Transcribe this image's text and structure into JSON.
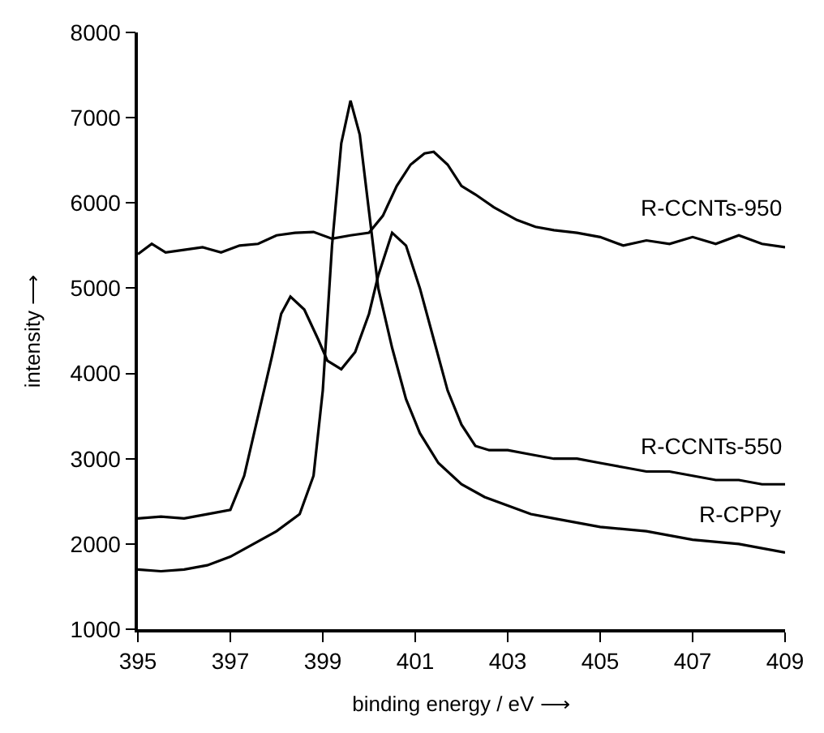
{
  "chart_data": {
    "type": "line",
    "xlabel": "binding energy / eV ⟶",
    "ylabel": "intensity ⟶",
    "xlim": [
      395,
      409
    ],
    "xticks": [
      395,
      397,
      399,
      401,
      403,
      405,
      407,
      409
    ],
    "ylim": [
      1000,
      8000
    ],
    "yticks": [
      1000,
      2000,
      3000,
      4000,
      5000,
      6000,
      7000,
      8000
    ],
    "legend": false,
    "marker": "none",
    "line_style": "solid",
    "series": [
      {
        "name": "R-CCNTs-950",
        "color": "#000000",
        "x": [
          395,
          395.3,
          395.6,
          396,
          396.4,
          396.8,
          397.2,
          397.6,
          398,
          398.4,
          398.8,
          399.2,
          399.6,
          400,
          400.3,
          400.6,
          400.9,
          401.2,
          401.4,
          401.7,
          402,
          402.3,
          402.7,
          403.2,
          403.6,
          404,
          404.5,
          405,
          405.5,
          406,
          406.5,
          407,
          407.5,
          408,
          408.5,
          409
        ],
        "values": [
          5400,
          5520,
          5420,
          5450,
          5480,
          5420,
          5500,
          5520,
          5620,
          5650,
          5660,
          5580,
          5620,
          5650,
          5850,
          6200,
          6450,
          6580,
          6600,
          6450,
          6200,
          6100,
          5950,
          5800,
          5720,
          5680,
          5650,
          5600,
          5500,
          5560,
          5520,
          5600,
          5520,
          5620,
          5520,
          5480
        ]
      },
      {
        "name": "R-CCNTs-550",
        "color": "#000000",
        "x": [
          395,
          395.5,
          396,
          396.5,
          397,
          397.3,
          397.6,
          397.9,
          398.1,
          398.3,
          398.6,
          398.9,
          399.1,
          399.4,
          399.7,
          400,
          400.2,
          400.5,
          400.8,
          401.1,
          401.4,
          401.7,
          402,
          402.3,
          402.6,
          403,
          403.5,
          404,
          404.5,
          405,
          405.5,
          406,
          406.5,
          407,
          407.5,
          408,
          408.5,
          409
        ],
        "values": [
          2300,
          2320,
          2300,
          2350,
          2400,
          2800,
          3500,
          4200,
          4700,
          4900,
          4750,
          4400,
          4150,
          4050,
          4250,
          4700,
          5150,
          5650,
          5500,
          5000,
          4400,
          3800,
          3400,
          3150,
          3100,
          3100,
          3050,
          3000,
          3000,
          2950,
          2900,
          2850,
          2850,
          2800,
          2750,
          2750,
          2700,
          2700
        ]
      },
      {
        "name": "R-CPPy",
        "color": "#000000",
        "x": [
          395,
          395.5,
          396,
          396.5,
          397,
          397.5,
          398,
          398.5,
          398.8,
          399,
          399.2,
          399.4,
          399.6,
          399.8,
          400,
          400.2,
          400.5,
          400.8,
          401.1,
          401.5,
          402,
          402.5,
          403,
          403.5,
          404,
          405,
          406,
          407,
          408,
          409
        ],
        "values": [
          1700,
          1680,
          1700,
          1750,
          1850,
          2000,
          2150,
          2350,
          2800,
          3800,
          5500,
          6700,
          7200,
          6800,
          5900,
          5000,
          4300,
          3700,
          3300,
          2950,
          2700,
          2550,
          2450,
          2350,
          2300,
          2200,
          2150,
          2050,
          2000,
          1900
        ]
      }
    ]
  }
}
